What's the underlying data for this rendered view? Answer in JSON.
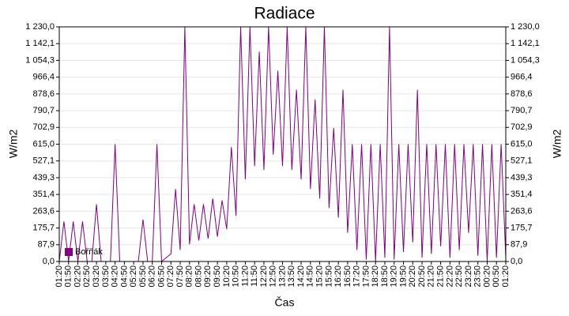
{
  "chart_data": {
    "type": "line",
    "title": "Radiace",
    "x_label": "Čas",
    "y_label": "W/m2",
    "x": [
      "01:20",
      null,
      "01:50",
      null,
      "02:20",
      null,
      "02:50",
      null,
      "03:20",
      null,
      "03:50",
      null,
      "04:20",
      null,
      "04:50",
      null,
      "05:20",
      null,
      "05:50",
      null,
      "06:20",
      null,
      "06:50",
      null,
      "07:20",
      null,
      "07:50",
      null,
      "08:20",
      null,
      "08:50",
      null,
      "09:20",
      null,
      "09:50",
      null,
      "10:20",
      null,
      "10:50",
      null,
      "11:20",
      null,
      "11:50",
      null,
      "12:20",
      null,
      "12:50",
      null,
      "13:20",
      null,
      "13:50",
      null,
      "14:20",
      null,
      "14:50",
      null,
      "15:20",
      null,
      "15:50",
      null,
      "16:20",
      null,
      "16:50",
      null,
      "17:20",
      null,
      "17:50",
      null,
      "18:20",
      null,
      "18:50",
      null,
      "19:20",
      null,
      "19:50",
      null,
      "20:20",
      null,
      "20:50",
      null,
      "21:20",
      null,
      "21:50",
      null,
      "22:20",
      null,
      "22:50",
      null,
      "23:20",
      null,
      "23:50",
      null,
      "00:20",
      null,
      "00:50",
      null,
      "01:20"
    ],
    "series": [
      {
        "name": "Bořňák",
        "color": "#800080",
        "values": [
          0,
          210,
          0,
          210,
          0,
          210,
          0,
          0,
          300,
          0,
          0,
          0,
          615,
          0,
          0,
          0,
          0,
          0,
          220,
          0,
          0,
          615,
          0,
          20,
          40,
          380,
          60,
          1230,
          90,
          300,
          110,
          300,
          120,
          330,
          130,
          320,
          170,
          600,
          240,
          1230,
          430,
          1230,
          500,
          1100,
          480,
          1230,
          560,
          1000,
          500,
          1230,
          480,
          900,
          430,
          1230,
          380,
          850,
          330,
          1230,
          280,
          700,
          230,
          900,
          150,
          615,
          60,
          615,
          10,
          615,
          0,
          615,
          20,
          1230,
          10,
          615,
          50,
          615,
          100,
          900,
          20,
          615,
          40,
          615,
          80,
          615,
          20,
          615,
          60,
          615,
          150,
          615,
          30,
          615,
          0,
          615,
          20,
          615,
          20
        ]
      }
    ],
    "ylim": [
      0,
      1230
    ],
    "yticks": [
      {
        "value": 0,
        "label": "0,0"
      },
      {
        "value": 87.9,
        "label": "87,9"
      },
      {
        "value": 175.7,
        "label": "175,7"
      },
      {
        "value": 263.6,
        "label": "263,6"
      },
      {
        "value": 351.4,
        "label": "351,4"
      },
      {
        "value": 439.3,
        "label": "439,3"
      },
      {
        "value": 527.1,
        "label": "527,1"
      },
      {
        "value": 615,
        "label": "615,0"
      },
      {
        "value": 702.9,
        "label": "702,9"
      },
      {
        "value": 790.7,
        "label": "790,7"
      },
      {
        "value": 878.6,
        "label": "878,6"
      },
      {
        "value": 966.4,
        "label": "966,4"
      },
      {
        "value": 1054.3,
        "label": "1 054,3"
      },
      {
        "value": 1142.1,
        "label": "1 142,1"
      },
      {
        "value": 1230,
        "label": "1 230,0"
      }
    ],
    "grid": true,
    "legend": "lower left"
  }
}
